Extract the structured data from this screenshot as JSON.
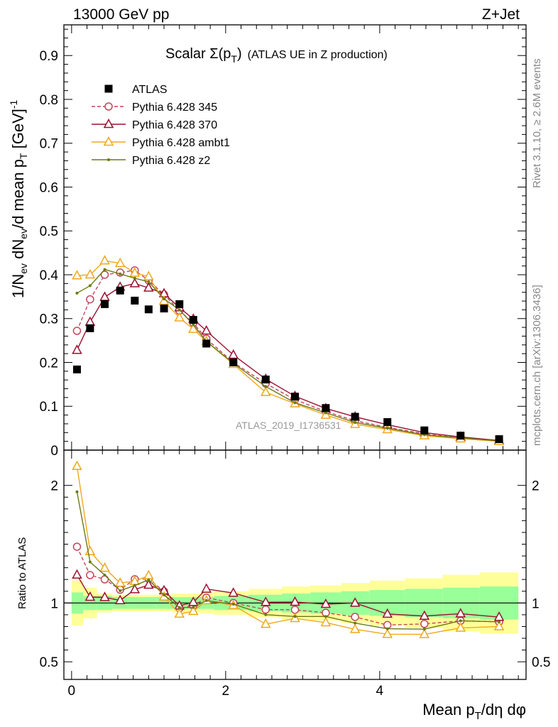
{
  "header": {
    "left": "13000 GeV pp",
    "right": "Z+Jet"
  },
  "side_labels": {
    "rivet": "Rivet 3.1.10, ≥ 2.6M events",
    "mcplots": "mcplots.cern.ch [arXiv:1306.3436]"
  },
  "watermark": "ATLAS_2019_I1736531",
  "chart_data": {
    "type": "line",
    "title": {
      "main": "Scalar Σ(p",
      "sub": "T",
      "close": ")",
      "note": "(ATLAS UE in Z production)"
    },
    "xlabel": {
      "a": "Mean p",
      "sub": "T",
      "b": "/dη dφ"
    },
    "ylabel": {
      "p1": "1/N",
      "s1": "ev",
      "p2": " dN",
      "s2": "ev",
      "p3": "/d mean p",
      "s3": "T",
      "p4": " [GeV]",
      "sup": "-1"
    },
    "ratio_ylabel": "Ratio to ATLAS",
    "xlim": [
      -0.1,
      5.9
    ],
    "ylim": [
      0,
      0.97
    ],
    "ratio_ylim": [
      0.35,
      2.3
    ],
    "x_ticks": [
      {
        "v": 0,
        "t": "0"
      },
      {
        "v": 2,
        "t": "2"
      },
      {
        "v": 4,
        "t": "4"
      }
    ],
    "y_ticks": [
      {
        "v": 0,
        "t": "0"
      },
      {
        "v": 0.1,
        "t": "0.1"
      },
      {
        "v": 0.2,
        "t": "0.2"
      },
      {
        "v": 0.3,
        "t": "0.3"
      },
      {
        "v": 0.4,
        "t": "0.4"
      },
      {
        "v": 0.5,
        "t": "0.5"
      },
      {
        "v": 0.6,
        "t": "0.6"
      },
      {
        "v": 0.7,
        "t": "0.7"
      },
      {
        "v": 0.8,
        "t": "0.8"
      },
      {
        "v": 0.9,
        "t": "0.9"
      }
    ],
    "ratio_ticks": [
      {
        "v": 0.5,
        "t": "0.5"
      },
      {
        "v": 1,
        "t": "1"
      },
      {
        "v": 2,
        "t": "2"
      }
    ],
    "x": [
      0.07,
      0.24,
      0.43,
      0.63,
      0.82,
      1.0,
      1.2,
      1.4,
      1.58,
      1.75,
      2.1,
      2.52,
      2.9,
      3.3,
      3.68,
      4.1,
      4.58,
      5.05,
      5.55
    ],
    "bin_edges": [
      0.0,
      0.15,
      0.33,
      0.53,
      0.73,
      0.9,
      1.1,
      1.3,
      1.5,
      1.67,
      1.85,
      2.3,
      2.73,
      3.1,
      3.5,
      3.87,
      4.33,
      4.82,
      5.3,
      5.8
    ],
    "band_inner": [
      0.09,
      0.06,
      0.06,
      0.05,
      0.05,
      0.05,
      0.05,
      0.05,
      0.05,
      0.05,
      0.06,
      0.07,
      0.08,
      0.09,
      0.1,
      0.11,
      0.12,
      0.13,
      0.14
    ],
    "band_outer": [
      0.19,
      0.13,
      0.08,
      0.07,
      0.07,
      0.07,
      0.07,
      0.08,
      0.08,
      0.09,
      0.1,
      0.12,
      0.14,
      0.15,
      0.17,
      0.19,
      0.21,
      0.24,
      0.26
    ],
    "legend_position": "top-left",
    "series": [
      {
        "name": "ATLAS",
        "color": "#000000",
        "marker": "square",
        "dashed": false,
        "line": false,
        "values": [
          0.184,
          0.278,
          0.333,
          0.364,
          0.341,
          0.321,
          0.323,
          0.333,
          0.297,
          0.243,
          0.2,
          0.161,
          0.122,
          0.096,
          0.076,
          0.064,
          0.045,
          0.033,
          0.025
        ]
      },
      {
        "name": "Pythia 6.428 345",
        "color": "#c0475a",
        "marker": "circle",
        "dashed": true,
        "line": true,
        "values": [
          0.272,
          0.344,
          0.4,
          0.405,
          0.41,
          0.387,
          0.355,
          0.318,
          0.29,
          0.254,
          0.2,
          0.152,
          0.115,
          0.088,
          0.067,
          0.052,
          0.037,
          0.028,
          0.021
        ]
      },
      {
        "name": "Pythia 6.428 370",
        "color": "#9b1030",
        "marker": "triangle",
        "dashed": false,
        "line": true,
        "values": [
          0.228,
          0.292,
          0.349,
          0.372,
          0.38,
          0.37,
          0.357,
          0.325,
          0.299,
          0.272,
          0.217,
          0.162,
          0.123,
          0.095,
          0.076,
          0.058,
          0.04,
          0.03,
          0.022
        ]
      },
      {
        "name": "Pythia 6.428 ambt1",
        "color": "#f0a81c",
        "marker": "triangle",
        "dashed": false,
        "line": true,
        "values": [
          0.398,
          0.4,
          0.432,
          0.426,
          0.404,
          0.396,
          0.34,
          0.302,
          0.276,
          0.248,
          0.196,
          0.132,
          0.106,
          0.08,
          0.059,
          0.047,
          0.033,
          0.026,
          0.02
        ]
      },
      {
        "name": "Pythia 6.428 z2",
        "color": "#6b7a12",
        "marker": "dot",
        "dashed": false,
        "line": true,
        "values": [
          0.358,
          0.375,
          0.412,
          0.402,
          0.392,
          0.384,
          0.345,
          0.32,
          0.286,
          0.248,
          0.198,
          0.145,
          0.108,
          0.085,
          0.063,
          0.05,
          0.035,
          0.028,
          0.021
        ]
      }
    ]
  }
}
